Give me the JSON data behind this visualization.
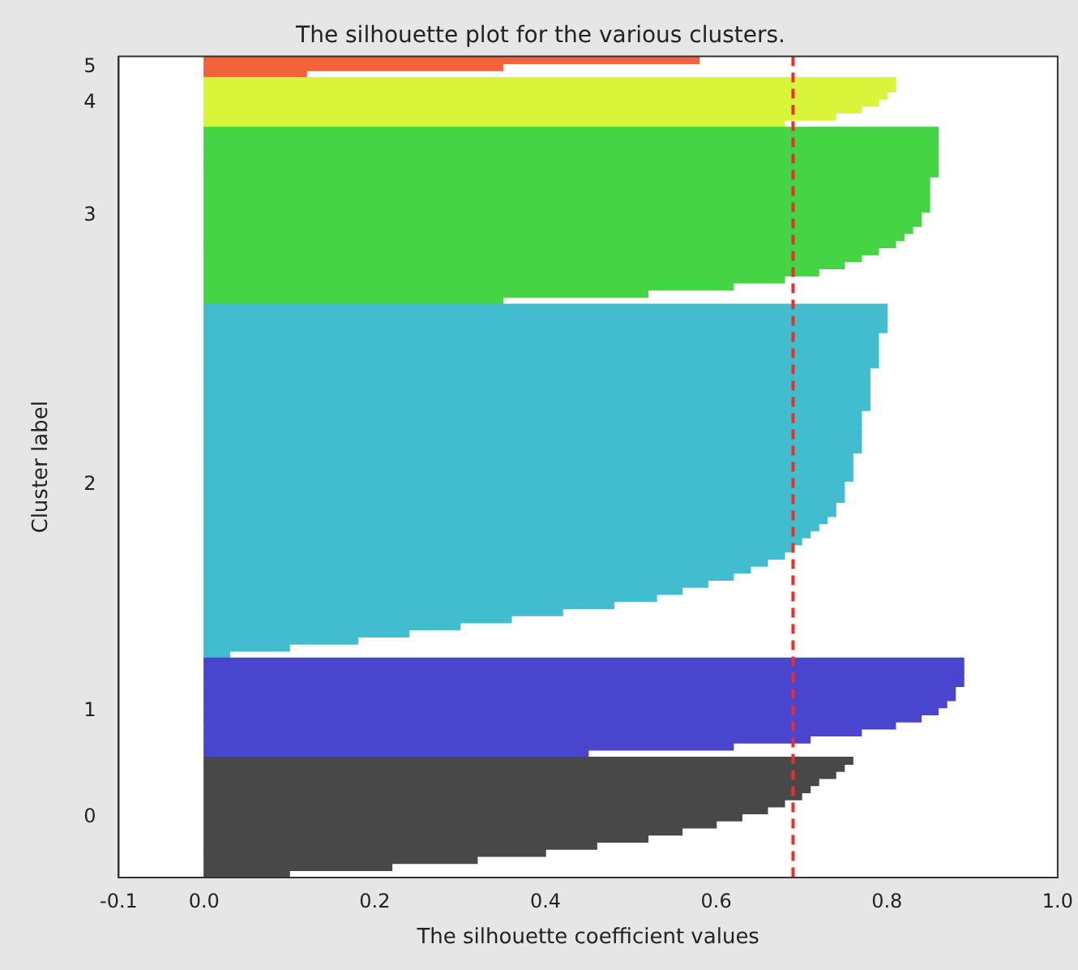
{
  "chart_data": {
    "type": "bar",
    "orientation": "horizontal",
    "title": "The silhouette plot for the various clusters.",
    "xlabel": "The silhouette coefficient values",
    "ylabel": "Cluster label",
    "categories": [
      null,
      "5",
      null,
      null,
      null,
      null,
      "4",
      null,
      null,
      null,
      null,
      null,
      null,
      null,
      null,
      null,
      null,
      null,
      null,
      null,
      null,
      null,
      "3",
      null,
      null,
      null,
      null,
      null,
      null,
      null,
      null,
      null,
      null,
      null,
      null,
      null,
      null,
      null,
      null,
      null,
      null,
      null,
      null,
      null,
      null,
      null,
      null,
      null,
      null,
      null,
      null,
      null,
      null,
      null,
      null,
      null,
      null,
      null,
      null,
      null,
      "2",
      null,
      null,
      null,
      null,
      null,
      null,
      null,
      null,
      null,
      null,
      null,
      null,
      null,
      null,
      null,
      null,
      null,
      null,
      null,
      null,
      null,
      null,
      null,
      null,
      null,
      null,
      null,
      null,
      null,
      null,
      null,
      "1",
      null,
      null,
      null,
      null,
      null,
      null,
      null,
      null,
      null,
      null,
      null,
      null,
      null,
      null,
      "0",
      null,
      null,
      null,
      null,
      null,
      null,
      null,
      null
    ],
    "values": [
      0.58,
      0.35,
      0.12,
      0.81,
      0.81,
      0.8,
      0.79,
      0.77,
      0.74,
      0.68,
      0.86,
      0.86,
      0.86,
      0.86,
      0.86,
      0.86,
      0.86,
      0.85,
      0.85,
      0.85,
      0.85,
      0.85,
      0.84,
      0.84,
      0.83,
      0.82,
      0.81,
      0.79,
      0.77,
      0.75,
      0.72,
      0.68,
      0.62,
      0.52,
      0.35,
      0.8,
      0.8,
      0.8,
      0.8,
      0.79,
      0.79,
      0.79,
      0.79,
      0.79,
      0.78,
      0.78,
      0.78,
      0.78,
      0.78,
      0.78,
      0.77,
      0.77,
      0.77,
      0.77,
      0.77,
      0.77,
      0.76,
      0.76,
      0.76,
      0.76,
      0.75,
      0.75,
      0.75,
      0.74,
      0.74,
      0.73,
      0.72,
      0.71,
      0.7,
      0.69,
      0.68,
      0.66,
      0.64,
      0.62,
      0.59,
      0.56,
      0.53,
      0.48,
      0.42,
      0.36,
      0.3,
      0.24,
      0.18,
      0.1,
      0.03,
      0.89,
      0.89,
      0.89,
      0.89,
      0.88,
      0.88,
      0.87,
      0.86,
      0.84,
      0.81,
      0.77,
      0.71,
      0.62,
      0.45,
      0.76,
      0.75,
      0.74,
      0.72,
      0.71,
      0.7,
      0.68,
      0.66,
      0.63,
      0.6,
      0.56,
      0.52,
      0.46,
      0.4,
      0.32,
      0.22,
      0.1
    ],
    "colors": [
      "#f5623a",
      "#f5623a",
      "#f5623a",
      "#d8f53a",
      "#d8f53a",
      "#d8f53a",
      "#d8f53a",
      "#d8f53a",
      "#d8f53a",
      "#d8f53a",
      "#44d444",
      "#44d444",
      "#44d444",
      "#44d444",
      "#44d444",
      "#44d444",
      "#44d444",
      "#44d444",
      "#44d444",
      "#44d444",
      "#44d444",
      "#44d444",
      "#44d444",
      "#44d444",
      "#44d444",
      "#44d444",
      "#44d444",
      "#44d444",
      "#44d444",
      "#44d444",
      "#44d444",
      "#44d444",
      "#44d444",
      "#44d444",
      "#44d444",
      "#42bccf",
      "#42bccf",
      "#42bccf",
      "#42bccf",
      "#42bccf",
      "#42bccf",
      "#42bccf",
      "#42bccf",
      "#42bccf",
      "#42bccf",
      "#42bccf",
      "#42bccf",
      "#42bccf",
      "#42bccf",
      "#42bccf",
      "#42bccf",
      "#42bccf",
      "#42bccf",
      "#42bccf",
      "#42bccf",
      "#42bccf",
      "#42bccf",
      "#42bccf",
      "#42bccf",
      "#42bccf",
      "#42bccf",
      "#42bccf",
      "#42bccf",
      "#42bccf",
      "#42bccf",
      "#42bccf",
      "#42bccf",
      "#42bccf",
      "#42bccf",
      "#42bccf",
      "#42bccf",
      "#42bccf",
      "#42bccf",
      "#42bccf",
      "#42bccf",
      "#42bccf",
      "#42bccf",
      "#42bccf",
      "#42bccf",
      "#42bccf",
      "#42bccf",
      "#42bccf",
      "#42bccf",
      "#42bccf",
      "#42bccf",
      "#4a45cf",
      "#4a45cf",
      "#4a45cf",
      "#4a45cf",
      "#4a45cf",
      "#4a45cf",
      "#4a45cf",
      "#4a45cf",
      "#4a45cf",
      "#4a45cf",
      "#4a45cf",
      "#4a45cf",
      "#4a45cf",
      "#4a45cf",
      "#484848",
      "#484848",
      "#484848",
      "#484848",
      "#484848",
      "#484848",
      "#484848",
      "#484848",
      "#484848",
      "#484848",
      "#484848",
      "#484848",
      "#484848",
      "#484848",
      "#484848",
      "#484848",
      "#484848"
    ],
    "xlim": [
      -0.1,
      1.0
    ],
    "xticks": [
      -0.1,
      {
        "value": 0,
        "label": "0.0"
      },
      0.2,
      0.4,
      0.6,
      0.8,
      {
        "value": 1,
        "label": "1.0"
      }
    ],
    "ref_lines": [
      {
        "axis": "x",
        "value": 0.69,
        "color": "#e8302a",
        "line_style": "dashed"
      }
    ],
    "grid": false,
    "legend": false
  }
}
